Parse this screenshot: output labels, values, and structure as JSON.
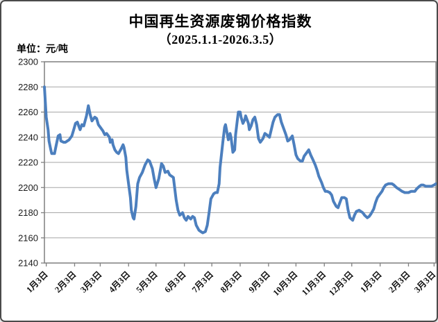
{
  "header": {
    "title": "中国再生资源废钢价格指数",
    "subtitle": "（2025.1.1-2026.3.5）",
    "unit_label": "单位：元/吨"
  },
  "chart_data": {
    "type": "line",
    "title": "中国再生资源废钢价格指数",
    "subtitle": "（2025.1.1-2026.3.5）",
    "ylabel": "单位：元/吨",
    "ylim": [
      2140,
      2300
    ],
    "yticks": [
      2300,
      2280,
      2260,
      2240,
      2220,
      2200,
      2180,
      2160,
      2140
    ],
    "grid": true,
    "legend": false,
    "x_total_days": 428,
    "xticks": [
      {
        "day": 2,
        "label": "1月3日"
      },
      {
        "day": 33,
        "label": "2月3日"
      },
      {
        "day": 61,
        "label": "3月3日"
      },
      {
        "day": 92,
        "label": "4月3日"
      },
      {
        "day": 122,
        "label": "5月3日"
      },
      {
        "day": 153,
        "label": "6月3日"
      },
      {
        "day": 183,
        "label": "7月3日"
      },
      {
        "day": 214,
        "label": "8月3日"
      },
      {
        "day": 245,
        "label": "9月3日"
      },
      {
        "day": 275,
        "label": "10月3日"
      },
      {
        "day": 306,
        "label": "11月3日"
      },
      {
        "day": 336,
        "label": "12月3日"
      },
      {
        "day": 367,
        "label": "1月3日"
      },
      {
        "day": 398,
        "label": "2月3日"
      },
      {
        "day": 426,
        "label": "3月3日"
      }
    ],
    "series": [
      {
        "name": "废钢价格指数",
        "points": [
          [
            0,
            2280
          ],
          [
            1,
            2268
          ],
          [
            2,
            2256
          ],
          [
            4,
            2246
          ],
          [
            5,
            2237
          ],
          [
            7,
            2230
          ],
          [
            8,
            2227
          ],
          [
            11,
            2227
          ],
          [
            13,
            2234
          ],
          [
            15,
            2241
          ],
          [
            17,
            2242
          ],
          [
            18,
            2237
          ],
          [
            21,
            2236
          ],
          [
            23,
            2236
          ],
          [
            25,
            2237
          ],
          [
            27,
            2238
          ],
          [
            30,
            2241
          ],
          [
            32,
            2246
          ],
          [
            34,
            2251
          ],
          [
            36,
            2252
          ],
          [
            39,
            2246
          ],
          [
            41,
            2250
          ],
          [
            43,
            2249
          ],
          [
            46,
            2257
          ],
          [
            48,
            2265
          ],
          [
            50,
            2258
          ],
          [
            52,
            2253
          ],
          [
            55,
            2256
          ],
          [
            57,
            2255
          ],
          [
            59,
            2250
          ],
          [
            62,
            2247
          ],
          [
            64,
            2245
          ],
          [
            66,
            2242
          ],
          [
            68,
            2243
          ],
          [
            71,
            2240
          ],
          [
            72,
            2236
          ],
          [
            74,
            2238
          ],
          [
            75,
            2234
          ],
          [
            77,
            2230
          ],
          [
            79,
            2228
          ],
          [
            81,
            2227
          ],
          [
            84,
            2231
          ],
          [
            86,
            2234
          ],
          [
            87,
            2232
          ],
          [
            89,
            2224
          ],
          [
            90,
            2214
          ],
          [
            92,
            2203
          ],
          [
            94,
            2192
          ],
          [
            95,
            2182
          ],
          [
            97,
            2176
          ],
          [
            98,
            2175
          ],
          [
            100,
            2185
          ],
          [
            102,
            2203
          ],
          [
            104,
            2208
          ],
          [
            107,
            2212
          ],
          [
            110,
            2218
          ],
          [
            113,
            2222
          ],
          [
            115,
            2221
          ],
          [
            118,
            2215
          ],
          [
            120,
            2207
          ],
          [
            122,
            2200
          ],
          [
            125,
            2207
          ],
          [
            128,
            2219
          ],
          [
            130,
            2217
          ],
          [
            132,
            2212
          ],
          [
            135,
            2213
          ],
          [
            137,
            2210
          ],
          [
            139,
            2209
          ],
          [
            141,
            2208
          ],
          [
            144,
            2190
          ],
          [
            146,
            2182
          ],
          [
            148,
            2178
          ],
          [
            151,
            2180
          ],
          [
            153,
            2176
          ],
          [
            155,
            2174
          ],
          [
            157,
            2177
          ],
          [
            160,
            2175
          ],
          [
            162,
            2177
          ],
          [
            164,
            2176
          ],
          [
            166,
            2170
          ],
          [
            169,
            2166
          ],
          [
            171,
            2165
          ],
          [
            173,
            2164
          ],
          [
            176,
            2165
          ],
          [
            178,
            2170
          ],
          [
            180,
            2180
          ],
          [
            182,
            2191
          ],
          [
            185,
            2195
          ],
          [
            187,
            2196
          ],
          [
            189,
            2196
          ],
          [
            191,
            2203
          ],
          [
            192,
            2216
          ],
          [
            195,
            2236
          ],
          [
            197,
            2248
          ],
          [
            198,
            2250
          ],
          [
            200,
            2242
          ],
          [
            201,
            2238
          ],
          [
            203,
            2243
          ],
          [
            204,
            2240
          ],
          [
            206,
            2228
          ],
          [
            208,
            2230
          ],
          [
            209,
            2242
          ],
          [
            211,
            2254
          ],
          [
            212,
            2260
          ],
          [
            214,
            2260
          ],
          [
            215,
            2256
          ],
          [
            217,
            2251
          ],
          [
            219,
            2254
          ],
          [
            220,
            2257
          ],
          [
            223,
            2251
          ],
          [
            224,
            2246
          ],
          [
            226,
            2249
          ],
          [
            228,
            2254
          ],
          [
            230,
            2256
          ],
          [
            232,
            2250
          ],
          [
            234,
            2239
          ],
          [
            236,
            2236
          ],
          [
            239,
            2239
          ],
          [
            241,
            2243
          ],
          [
            243,
            2242
          ],
          [
            246,
            2240
          ],
          [
            248,
            2246
          ],
          [
            250,
            2252
          ],
          [
            252,
            2256
          ],
          [
            255,
            2258
          ],
          [
            257,
            2258
          ],
          [
            259,
            2252
          ],
          [
            262,
            2246
          ],
          [
            264,
            2242
          ],
          [
            266,
            2237
          ],
          [
            268,
            2238
          ],
          [
            271,
            2241
          ],
          [
            273,
            2234
          ],
          [
            275,
            2226
          ],
          [
            277,
            2223
          ],
          [
            280,
            2221
          ],
          [
            282,
            2221
          ],
          [
            284,
            2225
          ],
          [
            287,
            2228
          ],
          [
            289,
            2230
          ],
          [
            291,
            2226
          ],
          [
            293,
            2223
          ],
          [
            296,
            2218
          ],
          [
            298,
            2214
          ],
          [
            300,
            2209
          ],
          [
            303,
            2204
          ],
          [
            305,
            2200
          ],
          [
            307,
            2197
          ],
          [
            309,
            2197
          ],
          [
            312,
            2196
          ],
          [
            314,
            2194
          ],
          [
            316,
            2189
          ],
          [
            319,
            2185
          ],
          [
            321,
            2184
          ],
          [
            323,
            2188
          ],
          [
            325,
            2192
          ],
          [
            328,
            2192
          ],
          [
            330,
            2191
          ],
          [
            332,
            2182
          ],
          [
            334,
            2176
          ],
          [
            337,
            2174
          ],
          [
            339,
            2178
          ],
          [
            341,
            2181
          ],
          [
            344,
            2182
          ],
          [
            346,
            2181
          ],
          [
            348,
            2180
          ],
          [
            350,
            2178
          ],
          [
            353,
            2176
          ],
          [
            355,
            2177
          ],
          [
            357,
            2179
          ],
          [
            360,
            2183
          ],
          [
            362,
            2188
          ],
          [
            364,
            2192
          ],
          [
            366,
            2194
          ],
          [
            369,
            2197
          ],
          [
            371,
            2200
          ],
          [
            373,
            2202
          ],
          [
            376,
            2203
          ],
          [
            378,
            2203
          ],
          [
            380,
            2203
          ],
          [
            382,
            2202
          ],
          [
            385,
            2200
          ],
          [
            387,
            2199
          ],
          [
            389,
            2198
          ],
          [
            391,
            2197
          ],
          [
            394,
            2196
          ],
          [
            396,
            2196
          ],
          [
            398,
            2196
          ],
          [
            401,
            2197
          ],
          [
            403,
            2197
          ],
          [
            405,
            2197
          ],
          [
            407,
            2199
          ],
          [
            410,
            2201
          ],
          [
            412,
            2202
          ],
          [
            414,
            2202
          ],
          [
            417,
            2201
          ],
          [
            419,
            2201
          ],
          [
            421,
            2201
          ],
          [
            423,
            2201
          ],
          [
            426,
            2202
          ],
          [
            428,
            2203
          ]
        ]
      }
    ],
    "colors": {
      "line": "#4C7FBE",
      "grid": "#A6A6A6",
      "plot_border": "#7F7F7F",
      "text": "#111111",
      "background": "#FFFFFF"
    }
  }
}
